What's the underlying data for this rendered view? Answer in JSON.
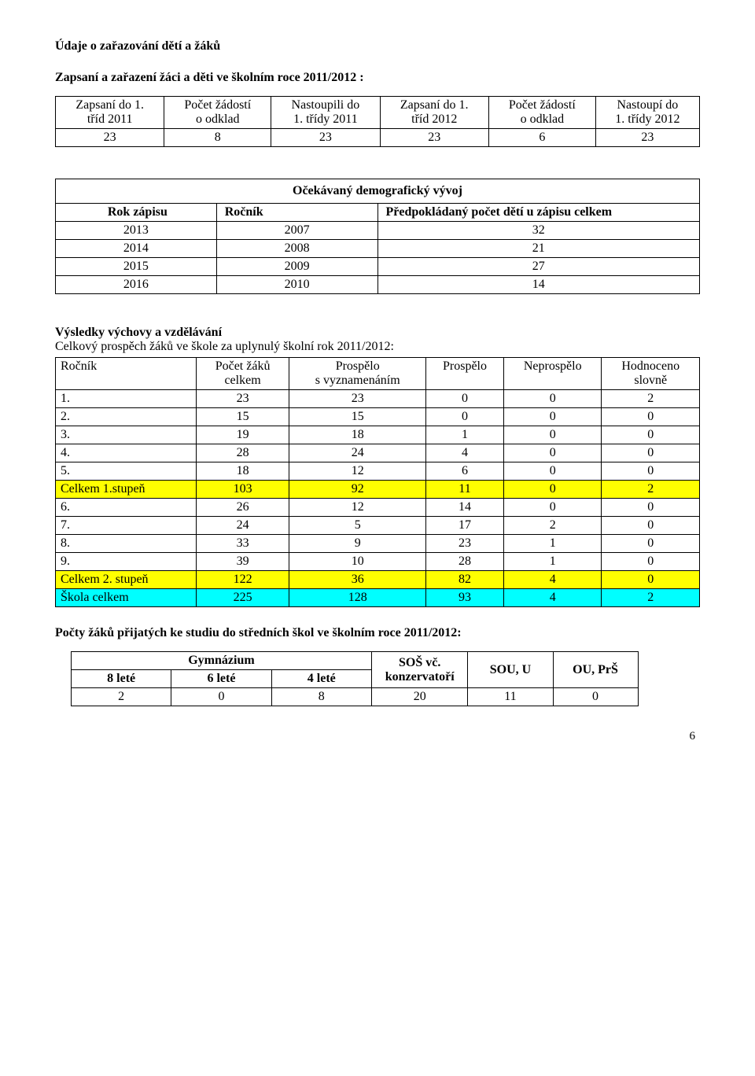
{
  "heading": "Údaje o zařazování dětí a žáků",
  "subheading": "Zapsaní a zařazení žáci a děti ve školním roce 2011/2012 :",
  "table1": {
    "headers": [
      [
        "Zapsaní do 1.",
        "tříd 2011"
      ],
      [
        "Počet žádostí",
        "o odklad"
      ],
      [
        "Nastoupili do",
        "1. třídy 2011"
      ],
      [
        "Zapsaní do 1.",
        "tříd 2012"
      ],
      [
        "Počet žádostí",
        "o odklad"
      ],
      [
        "Nastoupí do",
        "1. třídy 2012"
      ]
    ],
    "row": [
      "23",
      "8",
      "23",
      "23",
      "6",
      "23"
    ]
  },
  "table2": {
    "title": "Očekávaný demografický vývoj",
    "col_labels": [
      "Rok zápisu",
      "Ročník",
      "Předpokládaný počet dětí u zápisu celkem"
    ],
    "rows": [
      [
        "2013",
        "2007",
        "32"
      ],
      [
        "2014",
        "2008",
        "21"
      ],
      [
        "2015",
        "2009",
        "27"
      ],
      [
        "2016",
        "2010",
        "14"
      ]
    ]
  },
  "table3": {
    "title": "Výsledky výchovy a vzdělávání",
    "subtitle": "Celkový prospěch žáků ve škole za uplynulý školní rok 2011/2012:",
    "headers": [
      [
        "Ročník"
      ],
      [
        "Počet žáků",
        "celkem"
      ],
      [
        "Prospělo",
        "s vyznamenáním"
      ],
      [
        "Prospělo"
      ],
      [
        "Neprospělo"
      ],
      [
        "Hodnoceno",
        "slovně"
      ]
    ],
    "rows": [
      {
        "cells": [
          "1.",
          "23",
          "23",
          "0",
          "0",
          "2"
        ],
        "hl": ""
      },
      {
        "cells": [
          "2.",
          "15",
          "15",
          "0",
          "0",
          "0"
        ],
        "hl": ""
      },
      {
        "cells": [
          "3.",
          "19",
          "18",
          "1",
          "0",
          "0"
        ],
        "hl": ""
      },
      {
        "cells": [
          "4.",
          "28",
          "24",
          "4",
          "0",
          "0"
        ],
        "hl": ""
      },
      {
        "cells": [
          "5.",
          "18",
          "12",
          "6",
          "0",
          "0"
        ],
        "hl": ""
      },
      {
        "cells": [
          "Celkem 1.stupeň",
          "103",
          "92",
          "11",
          "0",
          "2"
        ],
        "hl": "yellow"
      },
      {
        "cells": [
          "6.",
          "26",
          "12",
          "14",
          "0",
          "0"
        ],
        "hl": ""
      },
      {
        "cells": [
          "7.",
          "24",
          "5",
          "17",
          "2",
          "0"
        ],
        "hl": ""
      },
      {
        "cells": [
          "8.",
          "33",
          "9",
          "23",
          "1",
          "0"
        ],
        "hl": ""
      },
      {
        "cells": [
          "9.",
          "39",
          "10",
          "28",
          "1",
          "0"
        ],
        "hl": ""
      },
      {
        "cells": [
          "Celkem 2. stupeň",
          "122",
          "36",
          "82",
          "4",
          "0"
        ],
        "hl": "yellow"
      },
      {
        "cells": [
          "Škola celkem",
          "225",
          "128",
          "93",
          "4",
          "2"
        ],
        "hl": "cyan"
      }
    ]
  },
  "table4": {
    "title": "Počty žáků přijatých ke studiu do středních škol ve školním roce 2011/2012:",
    "gym_label": "Gymnázium",
    "gym_sub": [
      "8 leté",
      "6 leté",
      "4 leté"
    ],
    "other_cols": [
      "SOŠ vč.\nkonzervatoří",
      "SOU, U",
      "OU, PrŠ"
    ],
    "row": [
      "2",
      "0",
      "8",
      "20",
      "11",
      "0"
    ]
  },
  "page_number": "6"
}
